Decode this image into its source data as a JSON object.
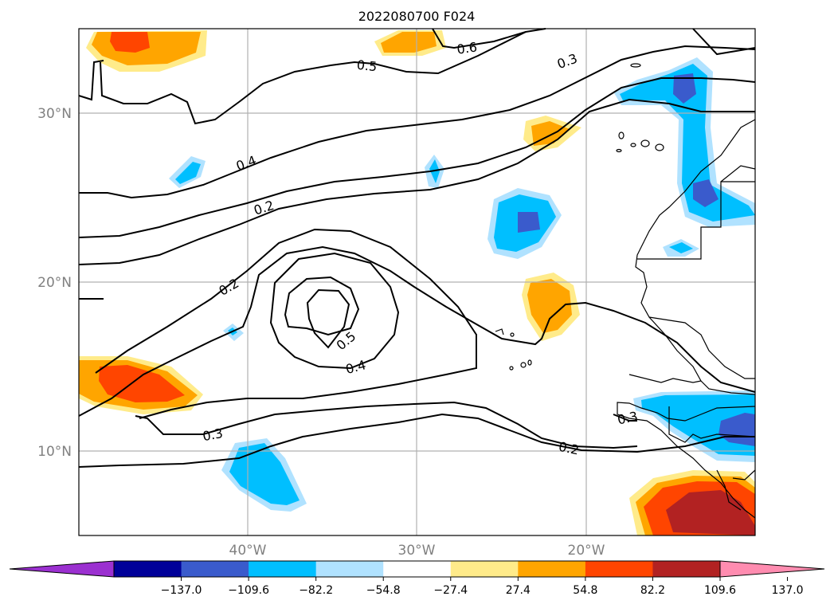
{
  "title": "2022080700 F024",
  "map": {
    "lat_labels": [
      "30°N",
      "20°N",
      "10°N"
    ],
    "lon_labels": [
      "40°W",
      "30°W",
      "20°W"
    ],
    "extent": {
      "lon": [
        -50,
        -10
      ],
      "lat": [
        5,
        35
      ]
    }
  },
  "colorbar": {
    "ticks": [
      "−137.0",
      "−109.6",
      "−82.2",
      "−54.8",
      "−27.4",
      "27.4",
      "54.8",
      "82.2",
      "109.6",
      "137.0"
    ],
    "colors": [
      "#9b30d0",
      "#000099",
      "#3a5bcc",
      "#00bfff",
      "#b0e2ff",
      "#ffffff",
      "#ffeb8a",
      "#ffa500",
      "#ff4500",
      "#b22222",
      "#ff8cb0"
    ],
    "extend": "both"
  },
  "contour_labels": [
    "0.6",
    "0.5",
    "0.3",
    "0.4",
    "0.2",
    "0.2",
    "0.5",
    "0.4",
    "0.3",
    "0.2",
    "0.3"
  ]
}
